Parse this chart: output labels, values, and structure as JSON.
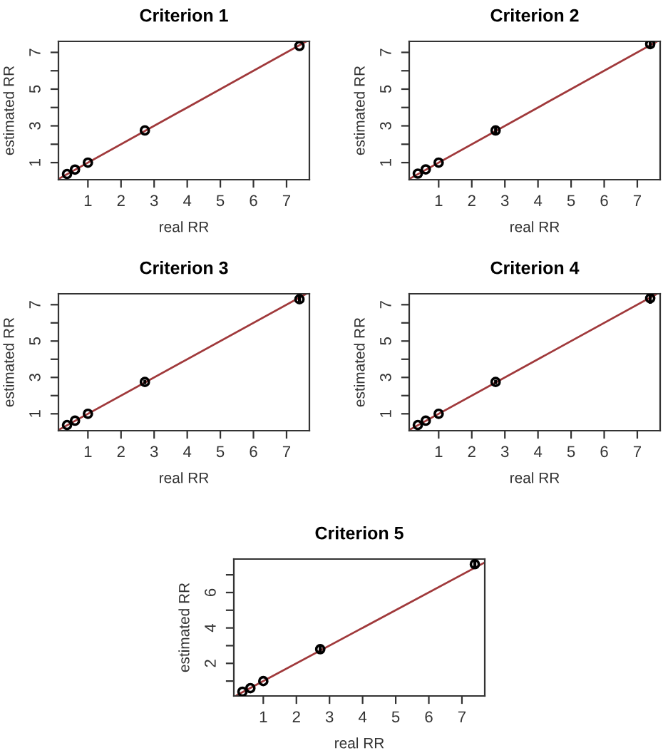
{
  "chart_data": [
    {
      "type": "scatter",
      "title": "Criterion 1",
      "xlabel": "real RR",
      "ylabel": "estimated RR",
      "xlim": [
        0.11,
        7.69
      ],
      "ylim": [
        0.07,
        7.6
      ],
      "xticks": [
        1,
        2,
        3,
        4,
        5,
        6,
        7
      ],
      "yticks": [
        1,
        {
          "value": 2,
          "label": null
        },
        3,
        {
          "value": 4,
          "label": null
        },
        5,
        {
          "value": 6,
          "label": null
        },
        7
      ],
      "series": [
        {
          "color": "#000000",
          "marker": "circle",
          "x": [
            0.37,
            0.61,
            1,
            2.72,
            7.39
          ],
          "values": [
            0.38,
            0.62,
            1.0,
            2.75,
            7.35
          ]
        },
        {
          "type": "line",
          "color": "#a0393b",
          "x": [
            0.11,
            7.6
          ],
          "values": [
            0.11,
            7.6
          ]
        }
      ]
    },
    {
      "type": "scatter",
      "title": "Criterion 2",
      "xlabel": "real RR",
      "ylabel": "estimated RR",
      "xlim": [
        0.11,
        7.69
      ],
      "ylim": [
        0.07,
        7.6
      ],
      "xticks": [
        1,
        2,
        3,
        4,
        5,
        6,
        7
      ],
      "yticks": [
        1,
        {
          "value": 2,
          "label": null
        },
        3,
        {
          "value": 4,
          "label": null
        },
        5,
        {
          "value": 6,
          "label": null
        },
        7
      ],
      "series": [
        {
          "color": "#000000",
          "marker": "circle",
          "x": [
            0.37,
            0.61,
            1,
            2.72,
            7.39
          ],
          "values": [
            0.4,
            0.63,
            1.0,
            2.75,
            7.45
          ],
          "errors": [
            null,
            null,
            null,
            0.2,
            0.25
          ]
        },
        {
          "type": "line",
          "color": "#a0393b",
          "x": [
            0.11,
            7.6
          ],
          "values": [
            0.11,
            7.6
          ]
        }
      ]
    },
    {
      "type": "scatter",
      "title": "Criterion 3",
      "xlabel": "real RR",
      "ylabel": "estimated RR",
      "xlim": [
        0.11,
        7.69
      ],
      "ylim": [
        0.07,
        7.6
      ],
      "xticks": [
        1,
        2,
        3,
        4,
        5,
        6,
        7
      ],
      "yticks": [
        1,
        {
          "value": 2,
          "label": null
        },
        3,
        {
          "value": 4,
          "label": null
        },
        5,
        {
          "value": 6,
          "label": null
        },
        7
      ],
      "series": [
        {
          "color": "#000000",
          "marker": "circle",
          "x": [
            0.37,
            0.61,
            1,
            2.72,
            7.39
          ],
          "values": [
            0.38,
            0.62,
            1.0,
            2.75,
            7.3
          ],
          "errors": [
            null,
            null,
            null,
            0.12,
            0.15
          ]
        },
        {
          "type": "line",
          "color": "#a0393b",
          "x": [
            0.11,
            7.6
          ],
          "values": [
            0.11,
            7.6
          ]
        }
      ]
    },
    {
      "type": "scatter",
      "title": "Criterion 4",
      "xlabel": "real RR",
      "ylabel": "estimated RR",
      "xlim": [
        0.11,
        7.69
      ],
      "ylim": [
        0.07,
        7.6
      ],
      "xticks": [
        1,
        2,
        3,
        4,
        5,
        6,
        7
      ],
      "yticks": [
        1,
        {
          "value": 2,
          "label": null
        },
        3,
        {
          "value": 4,
          "label": null
        },
        5,
        {
          "value": 6,
          "label": null
        },
        7
      ],
      "series": [
        {
          "color": "#000000",
          "marker": "circle",
          "x": [
            0.37,
            0.61,
            1,
            2.72,
            7.39
          ],
          "values": [
            0.38,
            0.62,
            1.0,
            2.75,
            7.35
          ],
          "errors": [
            null,
            null,
            null,
            0.12,
            0.3
          ]
        },
        {
          "type": "line",
          "color": "#a0393b",
          "x": [
            0.11,
            7.6
          ],
          "values": [
            0.11,
            7.6
          ]
        }
      ]
    },
    {
      "type": "scatter",
      "title": "Criterion 5",
      "xlabel": "real RR",
      "ylabel": "estimated RR",
      "xlim": [
        0.11,
        7.69
      ],
      "ylim": [
        0.16,
        7.89
      ],
      "xticks": [
        1,
        2,
        3,
        4,
        5,
        6,
        7
      ],
      "yticks": [
        {
          "value": 1,
          "label": null
        },
        2,
        {
          "value": 3,
          "label": null
        },
        4,
        {
          "value": 5,
          "label": null
        },
        6,
        {
          "value": 7,
          "label": null
        }
      ],
      "series": [
        {
          "color": "#000000",
          "marker": "circle",
          "x": [
            0.37,
            0.61,
            1,
            2.72,
            7.39
          ],
          "values": [
            0.4,
            0.6,
            1.0,
            2.8,
            7.6
          ],
          "errors": [
            null,
            null,
            null,
            0.25,
            0.25
          ]
        },
        {
          "type": "line",
          "color": "#a0393b",
          "x": [
            0.2,
            7.69
          ],
          "values": [
            0.2,
            7.7
          ]
        }
      ]
    }
  ]
}
